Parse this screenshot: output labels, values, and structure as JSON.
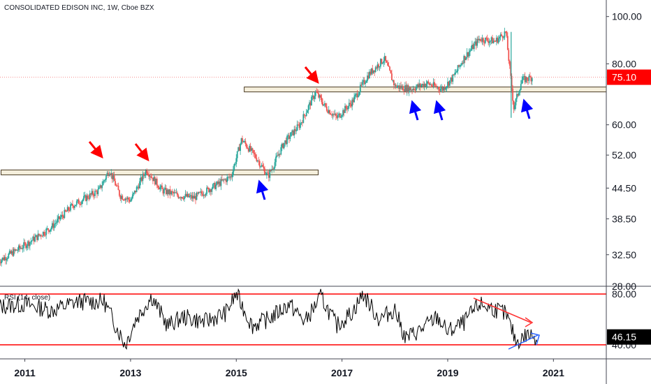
{
  "header": {
    "title": "CONSOLIDATED EDISON INC, 1W, Cboe BZX"
  },
  "rsi_panel": {
    "label": "RSI (14, close)",
    "current_value": "46.15",
    "value_badge_color": "#000000",
    "bands": [
      "80.00",
      "40.00"
    ]
  },
  "price_panel": {
    "current_price": "75.10",
    "price_badge_color": "#ff0000"
  },
  "chart_data": [
    {
      "type": "line",
      "title": "CONSOLIDATED EDISON INC, 1W, Cboe BZX",
      "series_type": "candlestick",
      "yscale": "log",
      "y_ticks": [
        "100.00",
        "80.00",
        "60.00",
        "52.00",
        "44.50",
        "38.50",
        "32.50",
        "28.00"
      ],
      "x_ticks": [
        "2011",
        "2013",
        "2015",
        "2017",
        "2019",
        "2021"
      ],
      "colors": {
        "up": "#26a69a",
        "down": "#ef5350"
      },
      "x": [
        2010.5,
        2011.0,
        2011.5,
        2011.9,
        2012.4,
        2012.6,
        2012.8,
        2013.0,
        2013.3,
        2013.6,
        2013.9,
        2014.2,
        2014.6,
        2014.9,
        2015.1,
        2015.4,
        2015.6,
        2015.9,
        2016.2,
        2016.5,
        2016.7,
        2016.9,
        2017.2,
        2017.5,
        2017.8,
        2018.0,
        2018.3,
        2018.6,
        2018.9,
        2019.1,
        2019.3,
        2019.6,
        2019.9,
        2020.1,
        2020.25,
        2020.4,
        2020.6
      ],
      "values": [
        31.5,
        34,
        37,
        41,
        44,
        48.5,
        43,
        42,
        48.5,
        44,
        43,
        42.5,
        45,
        47,
        56,
        51,
        47,
        55,
        60,
        70,
        65,
        62,
        67,
        76,
        82,
        72,
        71,
        73,
        71,
        75,
        82,
        90,
        89,
        93,
        65,
        74,
        75.1
      ],
      "support_resistance": [
        48.0,
        71.0
      ],
      "current_price": 75.1
    },
    {
      "type": "line",
      "title": "RSI (14, close)",
      "bands": [
        80,
        40
      ],
      "ylim": [
        30,
        85
      ],
      "x": [
        2010.5,
        2011.0,
        2011.5,
        2012.0,
        2012.5,
        2012.9,
        2013.1,
        2013.4,
        2013.7,
        2014.0,
        2014.4,
        2014.8,
        2015.0,
        2015.3,
        2015.6,
        2016.0,
        2016.3,
        2016.6,
        2016.9,
        2017.2,
        2017.4,
        2017.7,
        2018.0,
        2018.2,
        2018.5,
        2018.8,
        2019.0,
        2019.3,
        2019.6,
        2019.9,
        2020.1,
        2020.3,
        2020.5,
        2020.7
      ],
      "values": [
        70,
        72,
        67,
        74,
        74,
        40,
        60,
        78,
        55,
        62,
        58,
        65,
        80,
        55,
        60,
        72,
        58,
        78,
        55,
        66,
        80,
        60,
        68,
        45,
        52,
        62,
        50,
        57,
        72,
        68,
        64,
        42,
        48,
        46.15
      ]
    }
  ]
}
